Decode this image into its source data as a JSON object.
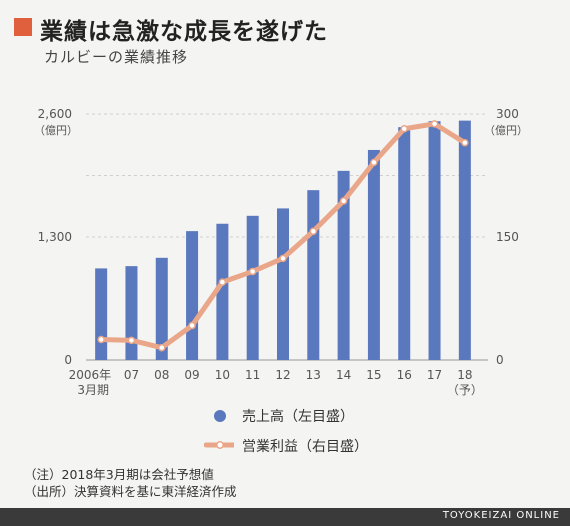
{
  "header": {
    "title": "業績は急激な成長を遂げた",
    "subtitle": "カルビーの業績推移"
  },
  "colors": {
    "accent": "#e0603e",
    "bar": "#5a78bd",
    "line": "#eaa688",
    "marker_fill": "#ffffff",
    "footer_bg": "#3a3a3a"
  },
  "chart_data": {
    "type": "bar+line",
    "categories": [
      "2006年",
      "07",
      "08",
      "09",
      "10",
      "11",
      "12",
      "13",
      "14",
      "15",
      "16",
      "17",
      "18"
    ],
    "category_sublabels": [
      "3月期",
      "",
      "",
      "",
      "",
      "",
      "",
      "",
      "",
      "",
      "",
      "",
      "（予）"
    ],
    "series": [
      {
        "name": "売上高（左目盛）",
        "type": "bar",
        "axis": "left",
        "values": [
          968,
          992,
          1080,
          1362,
          1440,
          1524,
          1602,
          1795,
          1999,
          2220,
          2461,
          2524,
          2530
        ]
      },
      {
        "name": "営業利益（右目盛）",
        "type": "line",
        "axis": "right",
        "values": [
          25,
          24,
          15,
          42,
          95,
          108,
          124,
          157,
          194,
          241,
          282,
          288,
          265
        ]
      }
    ],
    "left_axis": {
      "unit": "（億円）",
      "ticks": [
        "2,600",
        "1,300",
        "0"
      ],
      "range": [
        0,
        2600
      ]
    },
    "right_axis": {
      "unit": "（億円）",
      "ticks": [
        "300",
        "150",
        "0"
      ],
      "range": [
        0,
        300
      ]
    },
    "grid": true,
    "legend_position": "bottom"
  },
  "notes": [
    "（注）2018年3月期は会社予想値",
    "（出所）決算資料を基に東洋経済作成"
  ],
  "footer": {
    "brand": "TOYOKEIZAI ONLINE"
  }
}
